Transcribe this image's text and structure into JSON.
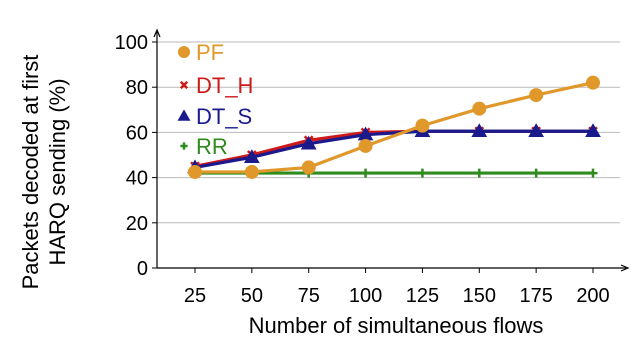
{
  "chart_data": {
    "type": "line",
    "xlabel": "Number of simultaneous flows",
    "ylabel_lines": [
      "Packets decoded at first",
      "HARQ sending (%)"
    ],
    "categories": [
      "25",
      "50",
      "75",
      "100",
      "125",
      "150",
      "175",
      "200"
    ],
    "x": [
      25,
      50,
      75,
      100,
      125,
      150,
      175,
      200
    ],
    "yticks": [
      "0",
      "20",
      "40",
      "60",
      "80",
      "100"
    ],
    "ylim": [
      0,
      100
    ],
    "grid": "horizontal",
    "legend_position": "top-left",
    "series": [
      {
        "name": "PF",
        "color": "#e0982a",
        "marker": "circle",
        "values": [
          42.5,
          42.5,
          44.5,
          54,
          63,
          70.5,
          76.5,
          82
        ]
      },
      {
        "name": "DT_H",
        "color": "#cc1a1a",
        "marker": "x",
        "values": [
          45,
          50,
          56.5,
          60,
          60.5,
          60.5,
          60.5,
          60.5
        ]
      },
      {
        "name": "DT_S",
        "color": "#1a1a8c",
        "marker": "triangle",
        "values": [
          44.5,
          49,
          55,
          59,
          60.5,
          60.5,
          60.5,
          60.5
        ]
      },
      {
        "name": "RR",
        "color": "#2e8b1e",
        "marker": "plus",
        "values": [
          42,
          42,
          42,
          42,
          42,
          42,
          42,
          42
        ]
      }
    ]
  }
}
